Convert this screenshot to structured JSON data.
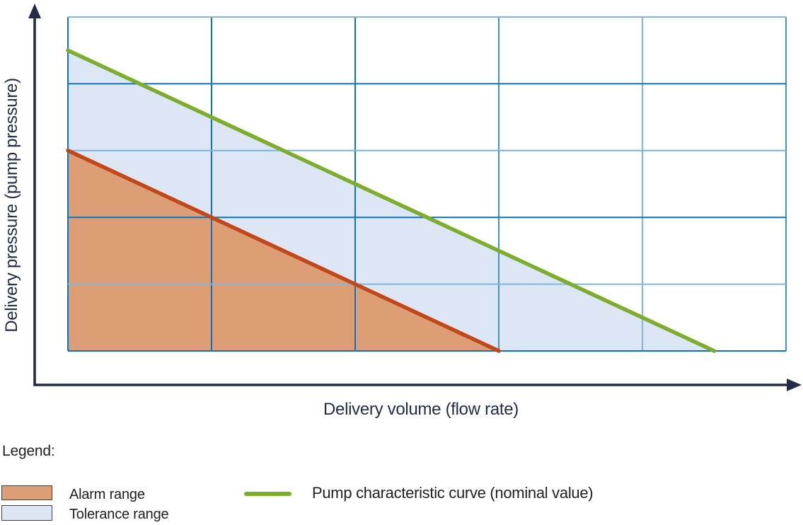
{
  "chart": {
    "xlabel": "Delivery volume (flow rate)",
    "ylabel": "Delivery pressure (pump pressure)"
  },
  "legend": {
    "heading": "Legend:",
    "items": [
      {
        "label": "Alarm range",
        "swatch": "rect",
        "color": "#dd9e76"
      },
      {
        "label": "Tolerance range",
        "swatch": "rect",
        "color": "#dce6f4"
      },
      {
        "label": "Pump characteristic curve (nominal value)",
        "swatch": "line",
        "color": "#7dad2d"
      }
    ]
  },
  "chart_data": {
    "type": "area",
    "title": "",
    "xlabel": "Delivery volume (flow rate)",
    "ylabel": "Delivery pressure (pump pressure)",
    "xlim": [
      0,
      5
    ],
    "ylim": [
      0,
      5
    ],
    "x_tick_labels": [],
    "y_tick_labels": [],
    "grid": {
      "on": true,
      "x_divisions": 5,
      "y_divisions": 5,
      "vertical_line_colors": [
        "#1573b7",
        "#0d72b7",
        "#0d72b7",
        "#3f92cb",
        "#7fb7e0",
        "#3f92cb"
      ],
      "horizontal_line_colors": [
        "#7fb7e0",
        "#0d72b7",
        "#7ab3dc",
        "#0d72b7",
        "#7fb7e0",
        "#1573b7"
      ],
      "line_width": 2
    },
    "axis_color": "#232c47",
    "axis_arrows": true,
    "legend_position": "below-chart",
    "series": [
      {
        "name": "Tolerance range",
        "kind": "area",
        "color": "#dce6f4",
        "polygon": [
          [
            0,
            4.5
          ],
          [
            4.5,
            0
          ],
          [
            0,
            0
          ]
        ]
      },
      {
        "name": "Alarm range",
        "kind": "area",
        "color": "#dd9e76",
        "polygon": [
          [
            0,
            3
          ],
          [
            3,
            0
          ],
          [
            0,
            0
          ]
        ]
      },
      {
        "name": "Alarm limit curve",
        "kind": "line",
        "color": "#c0481b",
        "width": 5.5,
        "points": [
          [
            0,
            3
          ],
          [
            3,
            0
          ]
        ]
      },
      {
        "name": "Pump characteristic curve (nominal value)",
        "kind": "line",
        "color": "#7dad2d",
        "width": 5.5,
        "points": [
          [
            0,
            4.5
          ],
          [
            4.5,
            0
          ]
        ]
      }
    ]
  }
}
